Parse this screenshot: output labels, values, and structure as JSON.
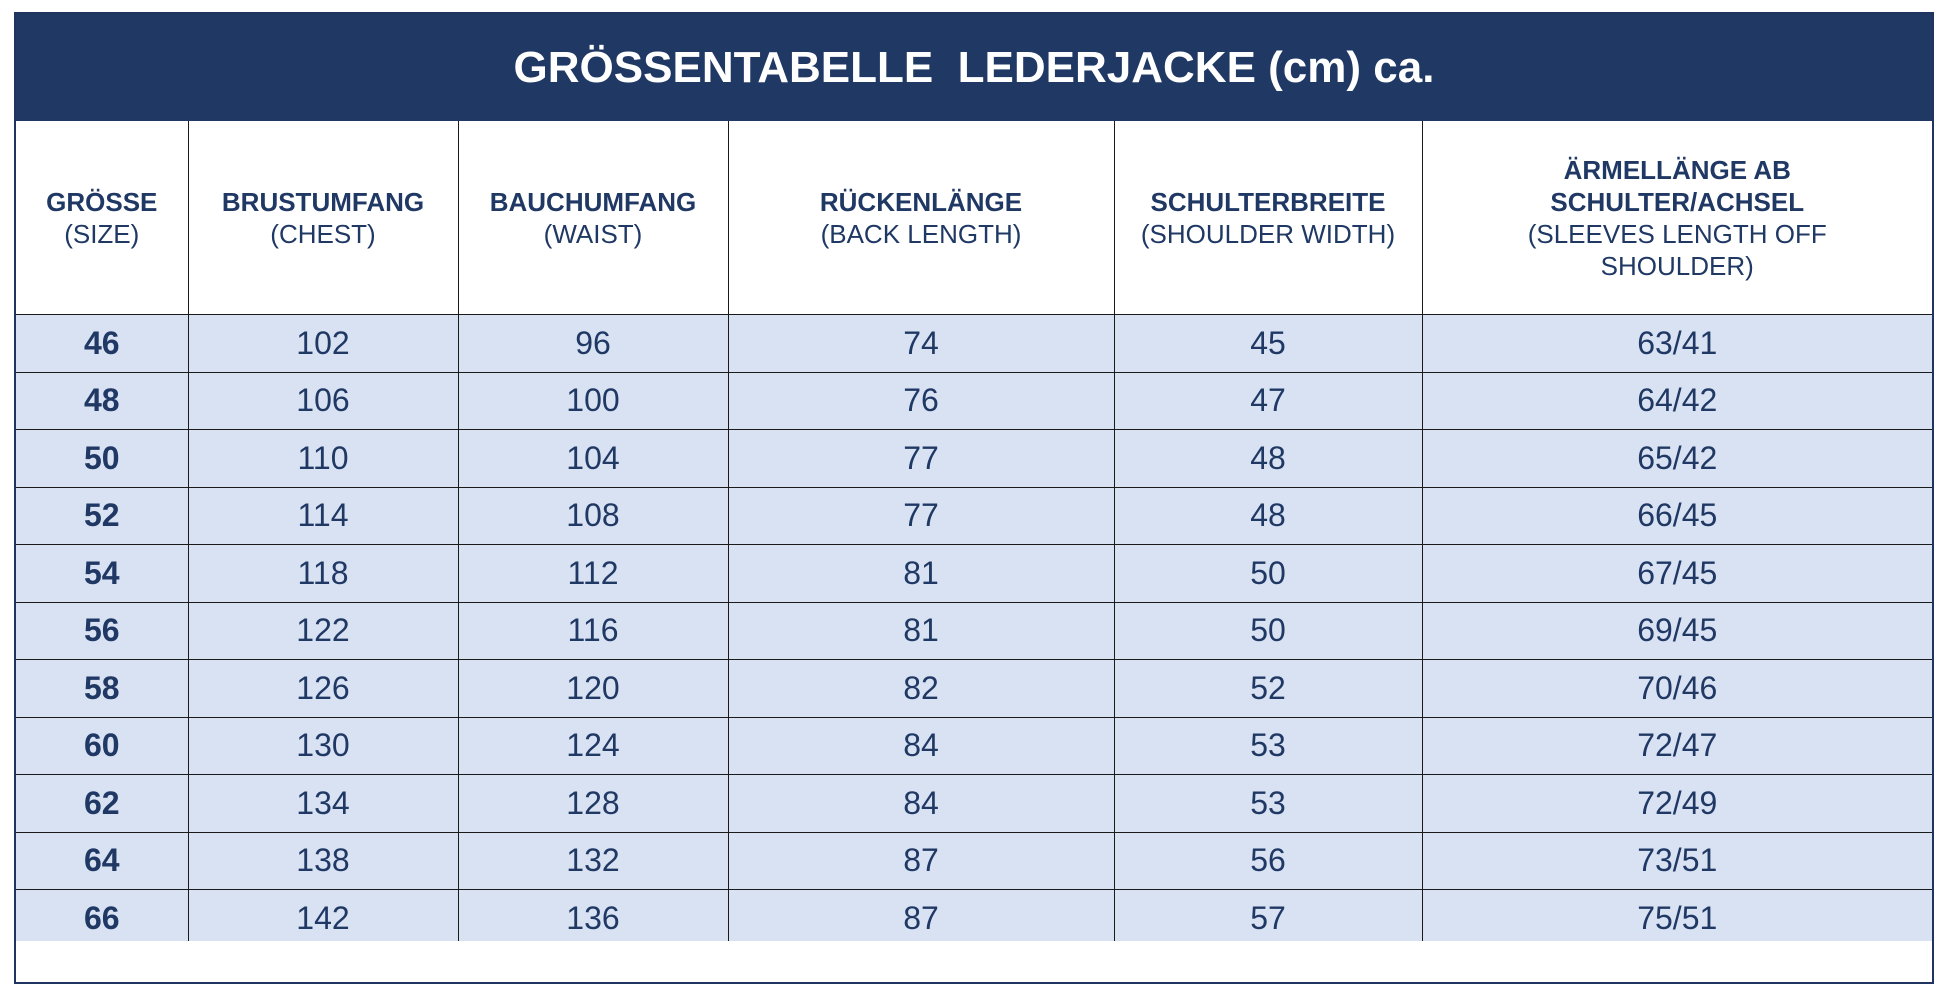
{
  "title": "GRÖSSENTABELLE  LEDERJACKE (cm) ca.",
  "columns": [
    {
      "main": "GRÖSSE",
      "sub": "(SIZE)"
    },
    {
      "main": "BRUSTUMFANG",
      "sub": "(CHEST)"
    },
    {
      "main": "BAUCHUMFANG",
      "sub": "(WAIST)"
    },
    {
      "main": "RÜCKENLÄNGE",
      "sub": "(BACK LENGTH)"
    },
    {
      "main": "SCHULTERBREITE",
      "sub": "(SHOULDER WIDTH)"
    },
    {
      "main": "ÄRMELLÄNGE AB SCHULTER/ACHSEL",
      "sub": "(SLEEVES LENGTH OFF SHOULDER)"
    }
  ],
  "rows": [
    [
      "46",
      "102",
      "96",
      "74",
      "45",
      "63/41"
    ],
    [
      "48",
      "106",
      "100",
      "76",
      "47",
      "64/42"
    ],
    [
      "50",
      "110",
      "104",
      "77",
      "48",
      "65/42"
    ],
    [
      "52",
      "114",
      "108",
      "77",
      "48",
      "66/45"
    ],
    [
      "54",
      "118",
      "112",
      "81",
      "50",
      "67/45"
    ],
    [
      "56",
      "122",
      "116",
      "81",
      "50",
      "69/45"
    ],
    [
      "58",
      "126",
      "120",
      "82",
      "52",
      "70/46"
    ],
    [
      "60",
      "130",
      "124",
      "84",
      "53",
      "72/47"
    ],
    [
      "62",
      "134",
      "128",
      "84",
      "53",
      "72/49"
    ],
    [
      "64",
      "138",
      "132",
      "87",
      "56",
      "73/51"
    ],
    [
      "66",
      "142",
      "136",
      "87",
      "57",
      "75/51"
    ]
  ],
  "colors": {
    "header_bg": "#1f3864",
    "row_bg": "#d9e2f3",
    "text": "#1f3864"
  }
}
